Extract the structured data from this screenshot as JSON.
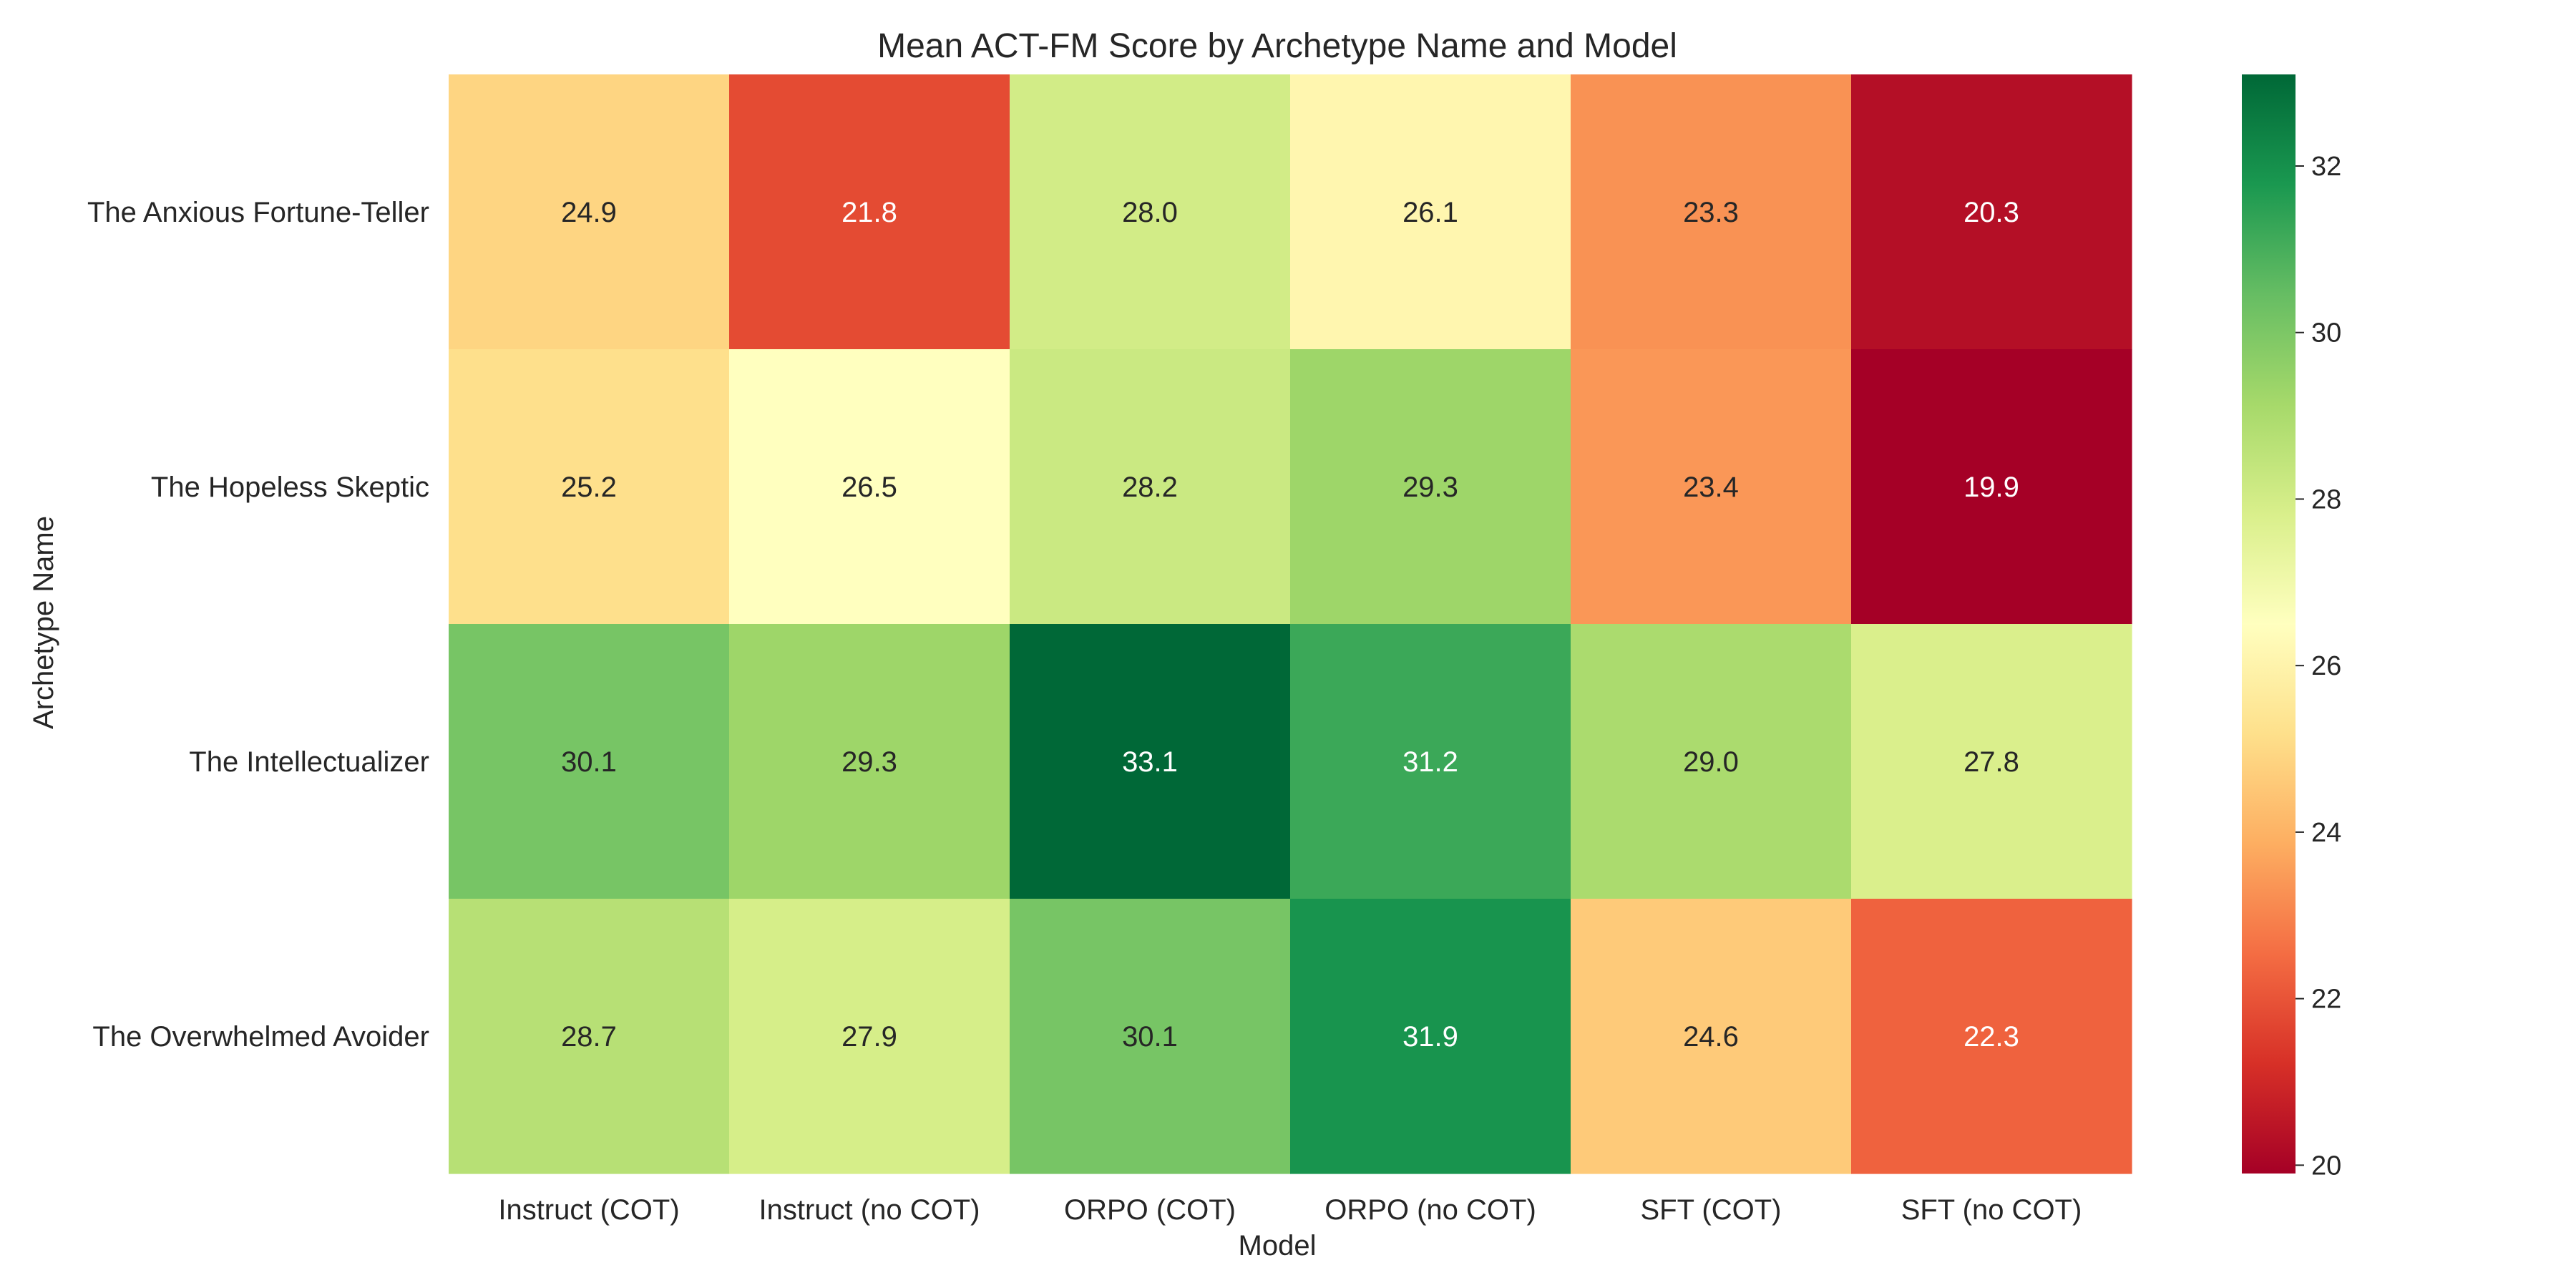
{
  "chart_data": {
    "type": "heatmap",
    "title": "Mean ACT-FM Score by Archetype Name and Model",
    "xlabel": "Model",
    "ylabel": "Archetype Name",
    "x_categories": [
      "Instruct (COT)",
      "Instruct (no COT)",
      "ORPO (COT)",
      "ORPO (no COT)",
      "SFT (COT)",
      "SFT (no COT)"
    ],
    "y_categories": [
      "The Anxious Fortune-Teller",
      "The Hopeless Skeptic",
      "The Intellectualizer",
      "The Overwhelmed Avoider"
    ],
    "values": [
      [
        24.9,
        21.8,
        28.0,
        26.1,
        23.3,
        20.3
      ],
      [
        25.2,
        26.5,
        28.2,
        29.3,
        23.4,
        19.9
      ],
      [
        30.1,
        29.3,
        33.1,
        31.2,
        29.0,
        27.8
      ],
      [
        28.7,
        27.9,
        30.1,
        31.9,
        24.6,
        22.3
      ]
    ],
    "value_format": "0.1f",
    "colormap": "RdYlGn",
    "colormap_stops": [
      "#a50026",
      "#d73027",
      "#f46d43",
      "#fdae61",
      "#fee08b",
      "#ffffbf",
      "#d9ef8b",
      "#a6d96a",
      "#66bd63",
      "#1a9850",
      "#006837"
    ],
    "colorbar": {
      "vmin": 19.9,
      "vmax": 33.1,
      "ticks": [
        20,
        22,
        24,
        26,
        28,
        30,
        32
      ]
    },
    "grid": false,
    "legend": "colorbar-right"
  }
}
